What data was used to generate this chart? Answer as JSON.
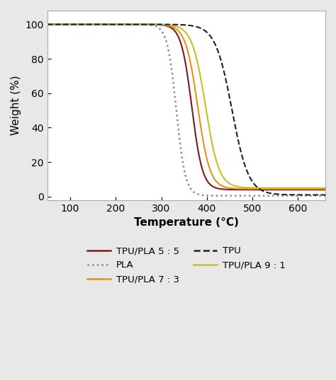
{
  "title": "",
  "xlabel": "Temperature (°C)",
  "ylabel": "Weight (%)",
  "xlim": [
    50,
    660
  ],
  "ylim": [
    -2,
    108
  ],
  "xticks": [
    100,
    200,
    300,
    400,
    500,
    600
  ],
  "yticks": [
    0,
    20,
    40,
    60,
    80,
    100
  ],
  "bg_color": "#e8e8e8",
  "plot_bg_color": "#ffffff",
  "curves": {
    "TPU/PLA 5:5": {
      "color": "#7b1a1a",
      "linestyle": "-",
      "linewidth": 1.5
    },
    "TPU/PLA 7:3": {
      "color": "#e8901a",
      "linestyle": "-",
      "linewidth": 1.5
    },
    "TPU/PLA 9:1": {
      "color": "#c8c020",
      "linestyle": "-",
      "linewidth": 1.5
    },
    "PLA": {
      "color": "#888899",
      "linestyle": ":",
      "linewidth": 1.8
    },
    "TPU": {
      "color": "#222222",
      "linestyle": "--",
      "linewidth": 1.5
    }
  },
  "legend_labels": [
    "TPU/PLA 5 : 5",
    "TPU/PLA 7 : 3",
    "TPU/PLA 9 : 1",
    "PLA",
    "TPU"
  ],
  "legend_colors": [
    "#7b1a1a",
    "#e8901a",
    "#c8c020",
    "#888899",
    "#222222"
  ],
  "legend_linestyles": [
    "-",
    "-",
    "-",
    ":",
    "--"
  ]
}
